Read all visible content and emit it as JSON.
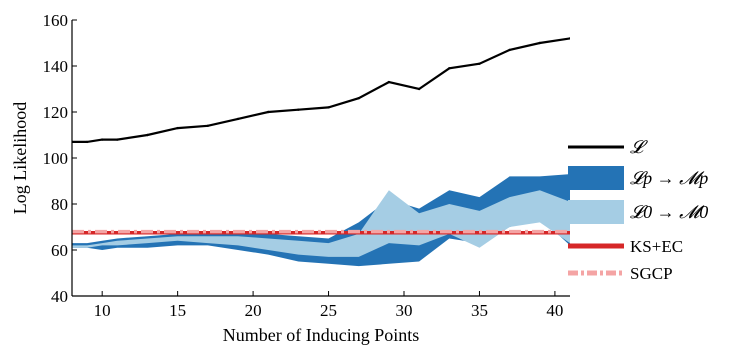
{
  "chart_data": {
    "type": "area",
    "title": "",
    "xlabel": "Number of Inducing Points",
    "ylabel": "Log Likelihood",
    "xlim": [
      8,
      41
    ],
    "ylim": [
      40,
      160
    ],
    "xticks": [
      10,
      15,
      20,
      25,
      30,
      35,
      40
    ],
    "yticks": [
      40,
      60,
      80,
      100,
      120,
      140,
      160
    ],
    "grid": false,
    "legend_position": "right",
    "series": [
      {
        "name": "𝓛",
        "kind": "line",
        "color": "#000000",
        "x": [
          8,
          9,
          10,
          11,
          13,
          15,
          17,
          19,
          21,
          23,
          25,
          27,
          29,
          31,
          33,
          35,
          37,
          39,
          41
        ],
        "y": [
          107,
          107,
          108,
          108,
          110,
          113,
          114,
          117,
          120,
          121,
          122,
          126,
          133,
          130,
          139,
          141,
          147,
          150,
          152
        ]
      },
      {
        "name": "𝓛p → 𝓜p",
        "kind": "band",
        "color": "#2473b5",
        "x": [
          8,
          9,
          10,
          11,
          13,
          15,
          17,
          19,
          21,
          23,
          25,
          27,
          29,
          31,
          33,
          35,
          37,
          39,
          41
        ],
        "upper": [
          63,
          63,
          64,
          65,
          66,
          67,
          67,
          67,
          67,
          66,
          65,
          72,
          82,
          78,
          86,
          83,
          92,
          92,
          93
        ],
        "lower": [
          61,
          61,
          60,
          61,
          61,
          62,
          62,
          60,
          58,
          55,
          54,
          53,
          54,
          55,
          65,
          63,
          70,
          74,
          62
        ]
      },
      {
        "name": "𝓛0 → 𝓜0",
        "kind": "band",
        "color": "#a5cde4",
        "x": [
          8,
          9,
          10,
          11,
          13,
          15,
          17,
          19,
          21,
          23,
          25,
          27,
          29,
          31,
          33,
          35,
          37,
          39,
          41
        ],
        "upper": [
          62,
          62,
          63,
          64,
          65,
          66,
          66,
          66,
          65,
          64,
          63,
          67,
          86,
          76,
          80,
          77,
          83,
          86,
          81
        ],
        "lower": [
          61,
          61,
          62,
          62,
          63,
          64,
          63,
          62,
          60,
          58,
          57,
          57,
          63,
          62,
          67,
          61,
          70,
          72,
          63
        ]
      },
      {
        "name": "KS+EC",
        "kind": "hline",
        "color": "#d62728",
        "y": 67.5
      },
      {
        "name": "SGCP",
        "kind": "hline-dashdot",
        "color": "#f4a4a4",
        "y": 68
      }
    ]
  },
  "legend": {
    "items": [
      {
        "label": "𝓛",
        "color": "#000000",
        "style": "line"
      },
      {
        "label": "𝓛p → 𝓜p",
        "color": "#2473b5",
        "style": "patch"
      },
      {
        "label": "𝓛0 → 𝓜0",
        "color": "#a5cde4",
        "style": "patch"
      },
      {
        "label": "KS+EC",
        "color": "#d62728",
        "style": "thick-line"
      },
      {
        "label": "SGCP",
        "color": "#f4a4a4",
        "style": "dashdot"
      }
    ]
  }
}
